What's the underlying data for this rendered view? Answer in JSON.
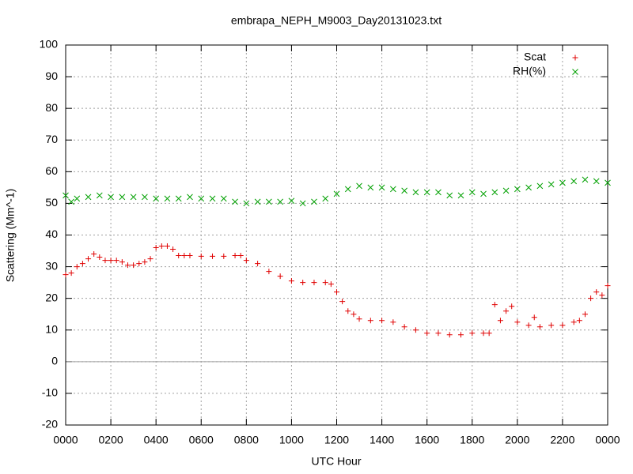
{
  "chart_data": {
    "type": "scatter",
    "title": "embrapa_NEPH_M9003_Day20131023.txt",
    "xlabel": "UTC Hour",
    "ylabel": "Scattering (Mm^-1)",
    "xlim": [
      0,
      24
    ],
    "ylim": [
      -20,
      100
    ],
    "xticks": [
      {
        "value": 0,
        "label": "0000"
      },
      {
        "value": 2,
        "label": "0200"
      },
      {
        "value": 4,
        "label": "0400"
      },
      {
        "value": 6,
        "label": "0600"
      },
      {
        "value": 8,
        "label": "0800"
      },
      {
        "value": 10,
        "label": "1000"
      },
      {
        "value": 12,
        "label": "1200"
      },
      {
        "value": 14,
        "label": "1400"
      },
      {
        "value": 16,
        "label": "1600"
      },
      {
        "value": 18,
        "label": "1800"
      },
      {
        "value": 20,
        "label": "2000"
      },
      {
        "value": 22,
        "label": "2200"
      },
      {
        "value": 24,
        "label": "0000"
      }
    ],
    "yticks": [
      -20,
      -10,
      0,
      10,
      20,
      30,
      40,
      50,
      60,
      70,
      80,
      90,
      100
    ],
    "grid": true,
    "zeroaxis": true,
    "legend": "top-right",
    "series": [
      {
        "name": "Scat",
        "color": "#e00000",
        "marker": "plus",
        "x": [
          0,
          0.25,
          0.5,
          0.75,
          1,
          1.25,
          1.5,
          1.75,
          2,
          2.25,
          2.5,
          2.75,
          3,
          3.25,
          3.5,
          3.75,
          4,
          4.25,
          4.5,
          4.75,
          5,
          5.25,
          5.5,
          6,
          6.5,
          7,
          7.5,
          7.75,
          8,
          8.5,
          9,
          9.5,
          10,
          10.5,
          11,
          11.5,
          11.75,
          12,
          12.25,
          12.5,
          12.75,
          13,
          13.5,
          14,
          14.5,
          15,
          15.5,
          16,
          16.5,
          17,
          17.5,
          18,
          18.5,
          18.75,
          19,
          19.25,
          19.5,
          19.75,
          20,
          20.5,
          20.75,
          21,
          21.5,
          22,
          22.5,
          22.75,
          23,
          23.25,
          23.5,
          23.75,
          24
        ],
        "values": [
          27.5,
          28,
          30,
          31,
          32.5,
          34,
          33,
          32,
          32,
          32,
          31.5,
          30.5,
          30.5,
          31,
          31.5,
          32.5,
          36,
          36.5,
          36.5,
          35.5,
          33.5,
          33.5,
          33.5,
          33.3,
          33.3,
          33.3,
          33.5,
          33.5,
          32,
          31,
          28.5,
          27,
          25.5,
          25,
          25,
          25,
          24.5,
          22,
          19,
          16,
          15,
          13.5,
          13,
          13,
          12.5,
          11,
          10,
          9,
          9,
          8.5,
          8.5,
          9,
          9,
          9,
          18,
          13,
          16,
          17.5,
          12.5,
          11.5,
          14,
          11,
          11.5,
          11.5,
          12.5,
          13,
          15,
          20,
          22,
          21,
          24
        ]
      },
      {
        "name": "RH(%)",
        "color": "#00a000",
        "marker": "cross",
        "x": [
          0,
          0.25,
          0.5,
          1,
          1.5,
          2,
          2.5,
          3,
          3.5,
          4,
          4.5,
          5,
          5.5,
          6,
          6.5,
          7,
          7.5,
          8,
          8.5,
          9,
          9.5,
          10,
          10.5,
          11,
          11.5,
          12,
          12.5,
          13,
          13.5,
          14,
          14.5,
          15,
          15.5,
          16,
          16.5,
          17,
          17.5,
          18,
          18.5,
          19,
          19.5,
          20,
          20.5,
          21,
          21.5,
          22,
          22.5,
          23,
          23.5,
          24
        ],
        "values": [
          52.5,
          50.5,
          51.5,
          52,
          52.5,
          52,
          52,
          52,
          52,
          51.5,
          51.5,
          51.5,
          52,
          51.5,
          51.5,
          51.5,
          50.5,
          50,
          50.5,
          50.5,
          50.5,
          50.8,
          50,
          50.5,
          51.5,
          53,
          54.5,
          55.5,
          55,
          55,
          54.5,
          54,
          53.5,
          53.5,
          53.5,
          52.5,
          52.5,
          53.5,
          53,
          53.5,
          54,
          54.5,
          55,
          55.5,
          56,
          56.5,
          57,
          57.5,
          57,
          56.5
        ]
      }
    ]
  }
}
